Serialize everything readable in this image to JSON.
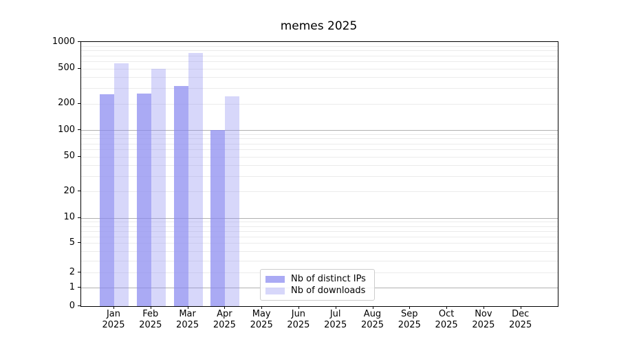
{
  "chart_data": {
    "type": "bar",
    "title": "memes 2025",
    "categories": [
      "Jan",
      "Feb",
      "Mar",
      "Apr",
      "May",
      "Jun",
      "Jul",
      "Aug",
      "Sep",
      "Oct",
      "Nov",
      "Dec"
    ],
    "year_label": "2025",
    "series": [
      {
        "name": "Nb of distinct IPs",
        "color": "rgba(137,137,240,0.72)",
        "values": [
          255,
          260,
          315,
          100,
          null,
          null,
          null,
          null,
          null,
          null,
          null,
          null
        ]
      },
      {
        "name": "Nb of downloads",
        "color": "rgba(137,137,240,0.34)",
        "values": [
          570,
          500,
          745,
          240,
          null,
          null,
          null,
          null,
          null,
          null,
          null,
          null
        ]
      }
    ],
    "yscale": "asinh",
    "asinh_linear_width": 2,
    "ylim": [
      0,
      1000
    ],
    "yticks": [
      0,
      1,
      2,
      5,
      10,
      20,
      50,
      100,
      200,
      500,
      1000
    ],
    "grid": "horizontal major and minor",
    "legend_position": "inside lower-center-left",
    "colors": {
      "bar_dark_on_white": "#aaaaf4",
      "bar_light_on_white": "#d7d7fa",
      "grid_major": "#b0b0b0",
      "grid_minor": "#ebebeb",
      "spine": "#000000"
    }
  }
}
